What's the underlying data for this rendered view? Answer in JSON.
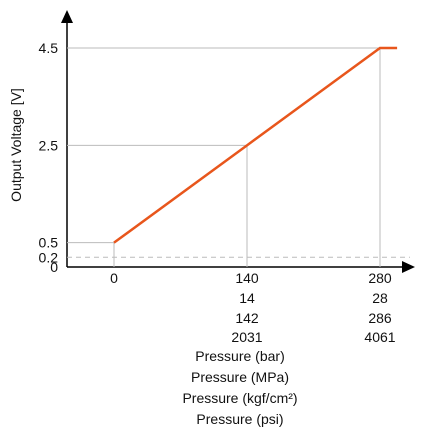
{
  "chart_data": {
    "type": "line",
    "ylabel": "Output Voltage [V]",
    "y_ticks": [
      0,
      0.2,
      0.5,
      2.5,
      4.5
    ],
    "y_tick_labels": [
      "0",
      "0.2",
      "0.5",
      "2.5",
      "4.5"
    ],
    "ylim": [
      0,
      4.5
    ],
    "xlim": [
      0,
      280
    ],
    "x_ticks": [
      0,
      140,
      280
    ],
    "x_tick_rows": [
      [
        "0",
        "140",
        "280"
      ],
      [
        "",
        "14",
        "28"
      ],
      [
        "",
        "142",
        "286"
      ],
      [
        "",
        "2031",
        "4061"
      ]
    ],
    "x_axis_labels": [
      "Pressure (bar)",
      "Pressure (MPa)",
      "Pressure (kgf/cm²)",
      "Pressure (psi)"
    ],
    "series": [
      {
        "x": [
          0,
          140,
          280,
          298
        ],
        "y": [
          0.5,
          2.5,
          4.5,
          4.5
        ]
      }
    ],
    "reference_line_y": 0.2,
    "colors": {
      "line": "#e8561c",
      "grid": "#bbbbbb",
      "axis": "#000000"
    }
  }
}
